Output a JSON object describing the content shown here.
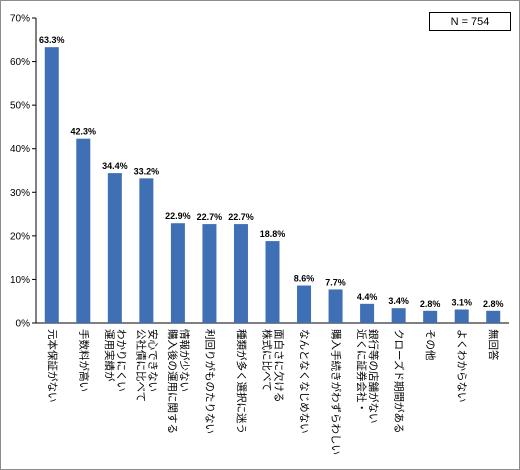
{
  "chart_data": {
    "type": "bar",
    "note": "N = 754",
    "categories": [
      "元本保証がない",
      "手数料が高い",
      "わかりにくい運用実績が",
      "安心できない公社債に比べて",
      "情報が少ない購入後の運用に関する",
      "利回りがものたりない",
      "種類が多く選択に迷う",
      "面白さに欠ける株式に比べて",
      "なんとなくなじめない",
      "購入手続きがわずらわしい",
      "銀行等の店舗がない近くに証券会社・",
      "クローズド期間がある",
      "その他",
      "よくわからない",
      "無回答"
    ],
    "category_lines": [
      [
        "元本保証がない"
      ],
      [
        "手数料が高い"
      ],
      [
        "わかりにくい",
        "運用実績が"
      ],
      [
        "安心できない",
        "公社債に比べて"
      ],
      [
        "情報が少ない",
        "購入後の運用に関する"
      ],
      [
        "利回りがものたりない"
      ],
      [
        "種類が多く選択に迷う"
      ],
      [
        "面白さに欠ける",
        "株式に比べて"
      ],
      [
        "なんとなくなじめない"
      ],
      [
        "購入手続きがわずらわしい"
      ],
      [
        "銀行等の店舗がない",
        "近くに証券会社・"
      ],
      [
        "クローズド期間がある"
      ],
      [
        "その他"
      ],
      [
        "よくわからない"
      ],
      [
        "無回答"
      ]
    ],
    "values": [
      63.3,
      42.3,
      34.4,
      33.2,
      22.9,
      22.7,
      22.7,
      18.8,
      8.6,
      7.7,
      4.4,
      3.4,
      2.8,
      3.1,
      2.8
    ],
    "data_labels": [
      "63.3%",
      "42.3%",
      "34.4%",
      "33.2%",
      "22.9%",
      "22.7%",
      "22.7%",
      "18.8%",
      "8.6%",
      "7.7%",
      "4.4%",
      "3.4%",
      "2.8%",
      "3.1%",
      "2.8%"
    ],
    "y_ticks": [
      "0%",
      "10%",
      "20%",
      "30%",
      "40%",
      "50%",
      "60%",
      "70%"
    ],
    "ylim": [
      0,
      70
    ],
    "bar_color": "#3f6fb5",
    "grid": false,
    "legend": "none"
  }
}
